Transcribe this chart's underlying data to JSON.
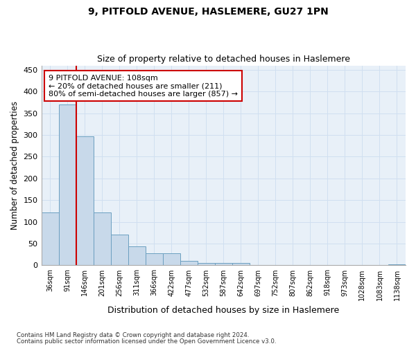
{
  "title1": "9, PITFOLD AVENUE, HASLEMERE, GU27 1PN",
  "title2": "Size of property relative to detached houses in Haslemere",
  "xlabel": "Distribution of detached houses by size in Haslemere",
  "ylabel": "Number of detached properties",
  "categories": [
    "36sqm",
    "91sqm",
    "146sqm",
    "201sqm",
    "256sqm",
    "311sqm",
    "366sqm",
    "422sqm",
    "477sqm",
    "532sqm",
    "587sqm",
    "642sqm",
    "697sqm",
    "752sqm",
    "807sqm",
    "862sqm",
    "918sqm",
    "973sqm",
    "1028sqm",
    "1083sqm",
    "1138sqm"
  ],
  "values": [
    122,
    370,
    297,
    122,
    70,
    43,
    28,
    28,
    10,
    5,
    5,
    5,
    0,
    0,
    0,
    0,
    0,
    1,
    0,
    2
  ],
  "bar_color": "#c8d9ea",
  "bar_edge_color": "#6b9fc0",
  "grid_color": "#d0dff0",
  "background_color": "#e8f0f8",
  "annotation_text": "9 PITFOLD AVENUE: 108sqm\n← 20% of detached houses are smaller (211)\n80% of semi-detached houses are larger (857) →",
  "vline_color": "#cc0000",
  "annotation_box_color": "#ffffff",
  "annotation_box_edge": "#cc0000",
  "ylim": [
    0,
    460
  ],
  "yticks": [
    0,
    50,
    100,
    150,
    200,
    250,
    300,
    350,
    400,
    450
  ],
  "footer1": "Contains HM Land Registry data © Crown copyright and database right 2024.",
  "footer2": "Contains public sector information licensed under the Open Government Licence v3.0."
}
